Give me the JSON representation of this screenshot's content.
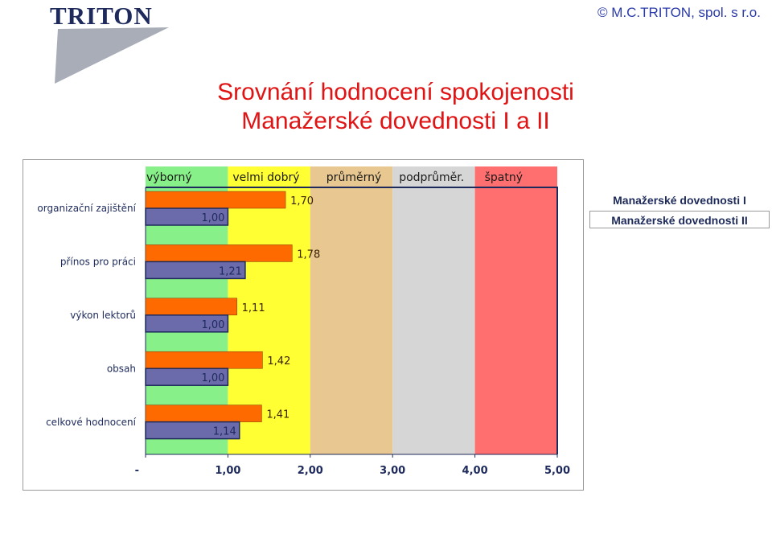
{
  "header": {
    "logo_text": "TRITON",
    "copyright": "© M.C.TRITON, spol. s r.o."
  },
  "title": {
    "line1": "Srovnání hodnocení spokojenosti",
    "line2": "Manažerské dovednosti I a II"
  },
  "colors": {
    "series_a": "#ff6a00",
    "series_b": "#6b6bab",
    "band_vyborny": "#88f088",
    "band_velmi_dobry": "#ffff33",
    "band_prumerny": "#e8c890",
    "band_podprumer": "#d6d6d6",
    "band_spatny": "#ff6f6f",
    "title": "#e01414",
    "text_navy": "#1d2a5b"
  },
  "chart_data": {
    "type": "bar",
    "orientation": "horizontal",
    "categories": [
      "organizační zajištění",
      "přínos pro práci",
      "výkon lektorů",
      "obsah",
      "celkové hodnocení"
    ],
    "series": [
      {
        "name": "Manažerské dovednosti I",
        "values": [
          1.7,
          1.78,
          1.11,
          1.42,
          1.41
        ],
        "labels": [
          "1,70",
          "1,78",
          "1,11",
          "1,42",
          "1,41"
        ]
      },
      {
        "name": "Manažerské dovednosti II",
        "values": [
          1.0,
          1.21,
          1.0,
          1.0,
          1.14
        ],
        "labels": [
          "1,00",
          "1,21",
          "1,00",
          "1,00",
          "1,14"
        ]
      }
    ],
    "bands": [
      {
        "label": "výborný",
        "from": 0,
        "to": 1
      },
      {
        "label": "velmi dobrý",
        "from": 1,
        "to": 2
      },
      {
        "label": "průměrný",
        "from": 2,
        "to": 3
      },
      {
        "label": "podprůměr.",
        "from": 3,
        "to": 4
      },
      {
        "label": "špatný",
        "from": 4,
        "to": 5
      }
    ],
    "xlim": [
      0,
      5
    ],
    "x_ticks": [
      0,
      1,
      2,
      3,
      4,
      5
    ],
    "x_tick_labels": [
      "-",
      "1,00",
      "2,00",
      "3,00",
      "4,00",
      "5,00"
    ],
    "legend_position": "right"
  }
}
